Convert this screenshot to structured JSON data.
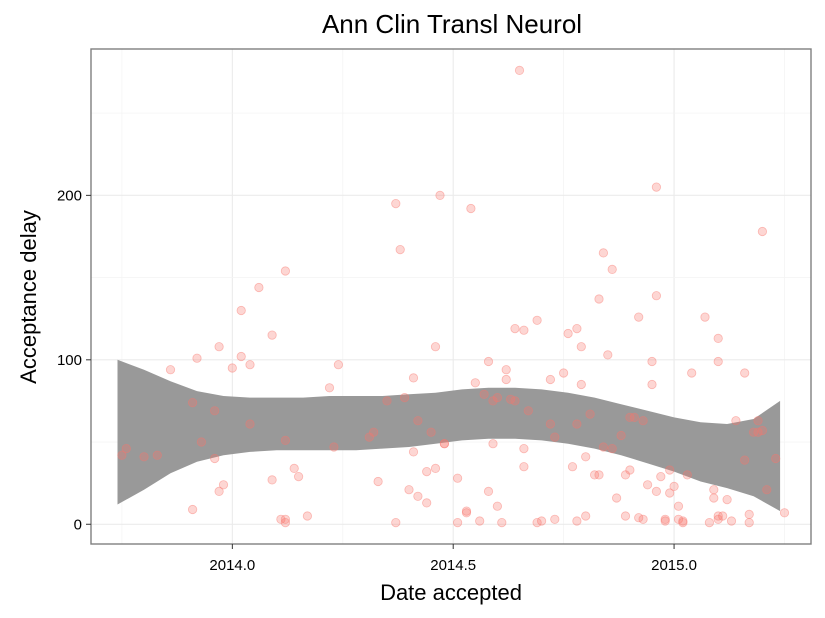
{
  "chart_data": {
    "type": "scatter",
    "title": "Ann Clin Transl Neurol",
    "xlabel": "Date accepted",
    "ylabel": "Acceptance delay",
    "xlim": [
      2013.68,
      2015.31
    ],
    "ylim": [
      -12,
      289
    ],
    "x_ticks": [
      2014.0,
      2014.5,
      2015.0
    ],
    "x_tick_labels": [
      "2014.0",
      "2014.5",
      "2015.0"
    ],
    "y_ticks": [
      0,
      100,
      200
    ],
    "y_tick_labels": [
      "0",
      "100",
      "200"
    ],
    "grid": true,
    "point_color": "#f8766d",
    "ribbon_color": "#999999",
    "points": [
      [
        2013.75,
        42
      ],
      [
        2013.76,
        46
      ],
      [
        2013.8,
        41
      ],
      [
        2013.83,
        42
      ],
      [
        2013.86,
        94
      ],
      [
        2013.91,
        74
      ],
      [
        2013.91,
        9
      ],
      [
        2013.92,
        101
      ],
      [
        2013.93,
        50
      ],
      [
        2013.96,
        69
      ],
      [
        2013.96,
        40
      ],
      [
        2013.97,
        20
      ],
      [
        2013.97,
        108
      ],
      [
        2013.98,
        24
      ],
      [
        2014.0,
        95
      ],
      [
        2014.02,
        102
      ],
      [
        2014.02,
        130
      ],
      [
        2014.04,
        97
      ],
      [
        2014.04,
        61
      ],
      [
        2014.06,
        144
      ],
      [
        2014.09,
        115
      ],
      [
        2014.09,
        27
      ],
      [
        2014.11,
        3
      ],
      [
        2014.12,
        51
      ],
      [
        2014.12,
        154
      ],
      [
        2014.12,
        1
      ],
      [
        2014.12,
        3
      ],
      [
        2014.14,
        34
      ],
      [
        2014.15,
        29
      ],
      [
        2014.17,
        5
      ],
      [
        2014.22,
        83
      ],
      [
        2014.23,
        47
      ],
      [
        2014.24,
        97
      ],
      [
        2014.31,
        53
      ],
      [
        2014.32,
        56
      ],
      [
        2014.33,
        26
      ],
      [
        2014.35,
        75
      ],
      [
        2014.37,
        1
      ],
      [
        2014.37,
        195
      ],
      [
        2014.38,
        167
      ],
      [
        2014.39,
        77
      ],
      [
        2014.4,
        21
      ],
      [
        2014.41,
        44
      ],
      [
        2014.41,
        89
      ],
      [
        2014.42,
        17
      ],
      [
        2014.42,
        63
      ],
      [
        2014.44,
        13
      ],
      [
        2014.44,
        32
      ],
      [
        2014.45,
        56
      ],
      [
        2014.46,
        34
      ],
      [
        2014.46,
        108
      ],
      [
        2014.47,
        200
      ],
      [
        2014.48,
        49
      ],
      [
        2014.48,
        49
      ],
      [
        2014.51,
        1
      ],
      [
        2014.51,
        28
      ],
      [
        2014.53,
        7
      ],
      [
        2014.53,
        8
      ],
      [
        2014.54,
        192
      ],
      [
        2014.55,
        86
      ],
      [
        2014.56,
        2
      ],
      [
        2014.57,
        79
      ],
      [
        2014.58,
        20
      ],
      [
        2014.58,
        99
      ],
      [
        2014.59,
        49
      ],
      [
        2014.59,
        75
      ],
      [
        2014.6,
        11
      ],
      [
        2014.6,
        77
      ],
      [
        2014.61,
        1
      ],
      [
        2014.62,
        88
      ],
      [
        2014.62,
        94
      ],
      [
        2014.63,
        76
      ],
      [
        2014.64,
        119
      ],
      [
        2014.64,
        75
      ],
      [
        2014.65,
        276
      ],
      [
        2014.66,
        35
      ],
      [
        2014.66,
        46
      ],
      [
        2014.66,
        118
      ],
      [
        2014.67,
        69
      ],
      [
        2014.69,
        124
      ],
      [
        2014.69,
        1
      ],
      [
        2014.7,
        2
      ],
      [
        2014.72,
        88
      ],
      [
        2014.72,
        61
      ],
      [
        2014.73,
        53
      ],
      [
        2014.73,
        3
      ],
      [
        2014.75,
        92
      ],
      [
        2014.76,
        116
      ],
      [
        2014.77,
        35
      ],
      [
        2014.78,
        119
      ],
      [
        2014.78,
        61
      ],
      [
        2014.78,
        2
      ],
      [
        2014.79,
        108
      ],
      [
        2014.79,
        85
      ],
      [
        2014.8,
        41
      ],
      [
        2014.8,
        5
      ],
      [
        2014.81,
        67
      ],
      [
        2014.82,
        30
      ],
      [
        2014.83,
        137
      ],
      [
        2014.83,
        30
      ],
      [
        2014.84,
        165
      ],
      [
        2014.84,
        47
      ],
      [
        2014.85,
        103
      ],
      [
        2014.86,
        46
      ],
      [
        2014.86,
        155
      ],
      [
        2014.87,
        16
      ],
      [
        2014.88,
        54
      ],
      [
        2014.89,
        30
      ],
      [
        2014.89,
        5
      ],
      [
        2014.9,
        65
      ],
      [
        2014.9,
        33
      ],
      [
        2014.91,
        65
      ],
      [
        2014.92,
        4
      ],
      [
        2014.92,
        126
      ],
      [
        2014.93,
        3
      ],
      [
        2014.93,
        63
      ],
      [
        2014.94,
        24
      ],
      [
        2014.95,
        85
      ],
      [
        2014.95,
        99
      ],
      [
        2014.96,
        20
      ],
      [
        2014.96,
        139
      ],
      [
        2014.96,
        205
      ],
      [
        2014.97,
        29
      ],
      [
        2014.98,
        3
      ],
      [
        2014.98,
        2
      ],
      [
        2014.99,
        19
      ],
      [
        2014.99,
        33
      ],
      [
        2015.0,
        23
      ],
      [
        2015.01,
        11
      ],
      [
        2015.01,
        3
      ],
      [
        2015.02,
        1
      ],
      [
        2015.02,
        2
      ],
      [
        2015.03,
        30
      ],
      [
        2015.04,
        92
      ],
      [
        2015.07,
        126
      ],
      [
        2015.08,
        1
      ],
      [
        2015.09,
        21
      ],
      [
        2015.09,
        16
      ],
      [
        2015.1,
        5
      ],
      [
        2015.1,
        3
      ],
      [
        2015.1,
        113
      ],
      [
        2015.1,
        99
      ],
      [
        2015.11,
        5
      ],
      [
        2015.12,
        15
      ],
      [
        2015.13,
        2
      ],
      [
        2015.14,
        63
      ],
      [
        2015.16,
        39
      ],
      [
        2015.16,
        92
      ],
      [
        2015.17,
        6
      ],
      [
        2015.17,
        1
      ],
      [
        2015.18,
        56
      ],
      [
        2015.19,
        56
      ],
      [
        2015.19,
        63
      ],
      [
        2015.2,
        57
      ],
      [
        2015.2,
        178
      ],
      [
        2015.21,
        21
      ],
      [
        2015.23,
        40
      ],
      [
        2015.25,
        7
      ]
    ],
    "smooth": {
      "x": [
        2013.74,
        2013.8,
        2013.86,
        2013.92,
        2013.98,
        2014.04,
        2014.1,
        2014.16,
        2014.22,
        2014.28,
        2014.34,
        2014.4,
        2014.46,
        2014.52,
        2014.58,
        2014.64,
        2014.7,
        2014.76,
        2014.82,
        2014.88,
        2014.94,
        2015.0,
        2015.06,
        2015.12,
        2015.18,
        2015.24
      ],
      "upper": [
        100,
        94,
        87,
        81,
        78,
        77,
        77,
        77,
        78,
        78,
        78,
        79,
        80,
        82,
        83,
        83,
        82,
        80,
        77,
        73,
        69,
        65,
        62,
        61,
        64,
        75
      ],
      "lower": [
        12,
        21,
        31,
        38,
        42,
        44,
        45,
        45,
        45,
        45,
        46,
        47,
        49,
        51,
        52,
        52,
        51,
        49,
        46,
        42,
        37,
        32,
        26,
        22,
        17,
        8
      ]
    }
  }
}
